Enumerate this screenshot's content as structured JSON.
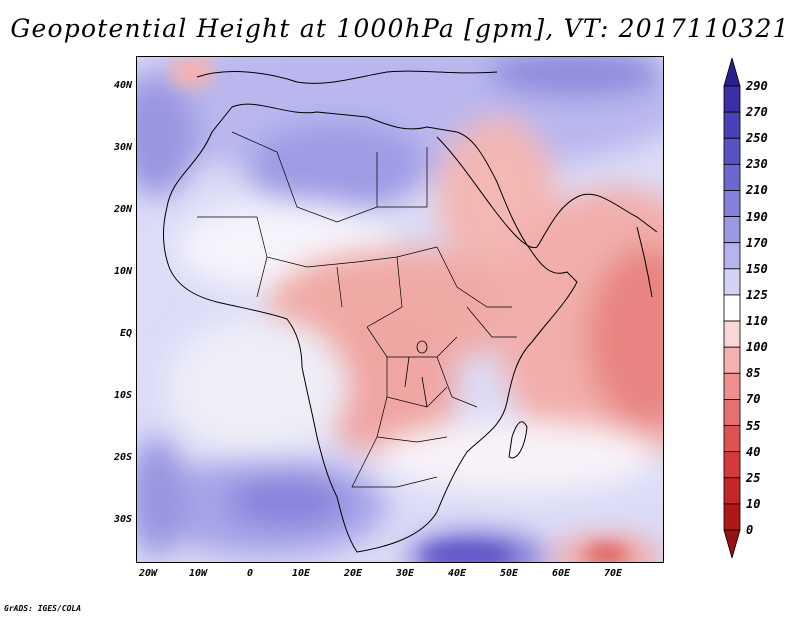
{
  "title": "Geopotential Height at 1000hPa [gpm], VT: 2017110321",
  "credit": "GrADS: IGES/COLA",
  "map": {
    "variable": "Geopotential Height",
    "level": "1000hPa",
    "units": "gpm",
    "valid_time": "2017110321",
    "lat_labels": [
      "40N",
      "30N",
      "20N",
      "10N",
      "EQ",
      "10S",
      "20S",
      "30S"
    ],
    "lon_labels": [
      "20W",
      "10W",
      "0",
      "10E",
      "20E",
      "30E",
      "40E",
      "50E",
      "60E",
      "70E"
    ]
  },
  "colorbar": {
    "labels": [
      "290",
      "270",
      "250",
      "230",
      "210",
      "190",
      "170",
      "150",
      "125",
      "110",
      "100",
      "85",
      "70",
      "55",
      "40",
      "25",
      "10",
      "0"
    ],
    "colors": [
      "#2a1f8f",
      "#3b2fa8",
      "#4a40b8",
      "#5a52c4",
      "#6d67d0",
      "#8480da",
      "#9c99e3",
      "#b5b4ec",
      "#d2d2f5",
      "#ffffff",
      "#fbd6d6",
      "#f5b0b0",
      "#ee8f8f",
      "#e67070",
      "#dd5353",
      "#d43a3a",
      "#c52727",
      "#b01818",
      "#9a1010"
    ]
  }
}
